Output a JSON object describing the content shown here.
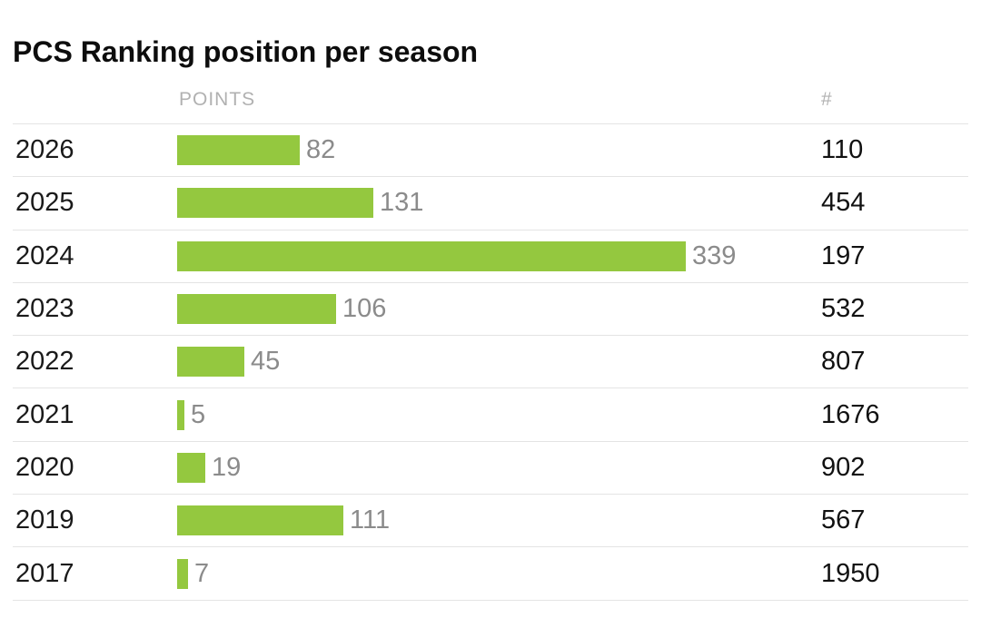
{
  "title": "PCS Ranking position per season",
  "columns": {
    "points_label": "POINTS",
    "rank_label": "#"
  },
  "colors": {
    "bar": "#94c83f",
    "divider": "#e4e4e4",
    "header_text": "#b1b1b1",
    "points_value_text": "#8b8b8b",
    "main_text": "#1a1a1a"
  },
  "chart_data": {
    "type": "bar",
    "orientation": "horizontal",
    "title": "PCS Ranking position per season",
    "categories": [
      "2026",
      "2025",
      "2024",
      "2023",
      "2022",
      "2021",
      "2020",
      "2019",
      "2017"
    ],
    "series": [
      {
        "name": "POINTS",
        "values": [
          82,
          131,
          339,
          106,
          45,
          5,
          19,
          111,
          7
        ]
      },
      {
        "name": "#",
        "values": [
          110,
          454,
          197,
          532,
          807,
          1676,
          902,
          567,
          1950
        ]
      }
    ],
    "xlim": [
      0,
      339
    ],
    "grid": false,
    "legend": false,
    "value_labels": "right-of-bar"
  }
}
